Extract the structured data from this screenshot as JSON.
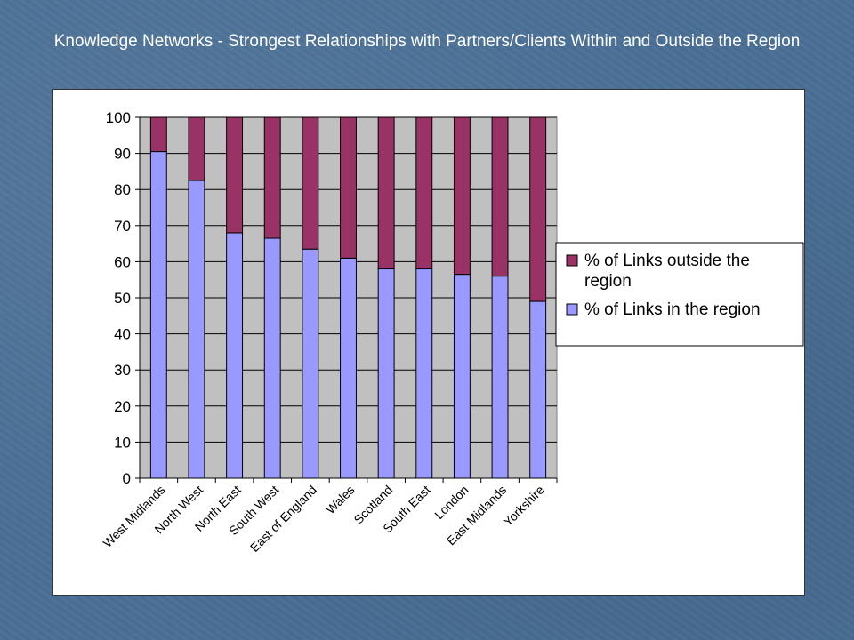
{
  "chart_data": {
    "type": "bar",
    "stacked": true,
    "title": "Knowledge Networks - Strongest Relationships with Partners/Clients Within and Outside the Region",
    "categories": [
      "West Midlands",
      "North West",
      "North East",
      "South West",
      "East of England",
      "Wales",
      "Scotland",
      "South East",
      "London",
      "East Midlands",
      "Yorkshire"
    ],
    "series": [
      {
        "name": "% of Links in the region",
        "color": "#9999ff",
        "values": [
          90.5,
          82.5,
          68,
          66.5,
          63.5,
          61,
          58,
          58,
          56.5,
          56,
          49
        ]
      },
      {
        "name": "% of Links outside the region",
        "color": "#993366",
        "values": [
          9.5,
          17.5,
          32,
          33.5,
          36.5,
          39,
          42,
          42,
          43.5,
          44,
          51
        ]
      }
    ],
    "ylim": [
      0,
      100
    ],
    "yticks": [
      0,
      10,
      20,
      30,
      40,
      50,
      60,
      70,
      80,
      90,
      100
    ],
    "plot_background": "#c0c0c0",
    "grid": true,
    "legend_position": "right",
    "legend_lines": [
      [
        "% of Links outside the",
        "region"
      ],
      [
        "% of Links in the region"
      ]
    ]
  }
}
